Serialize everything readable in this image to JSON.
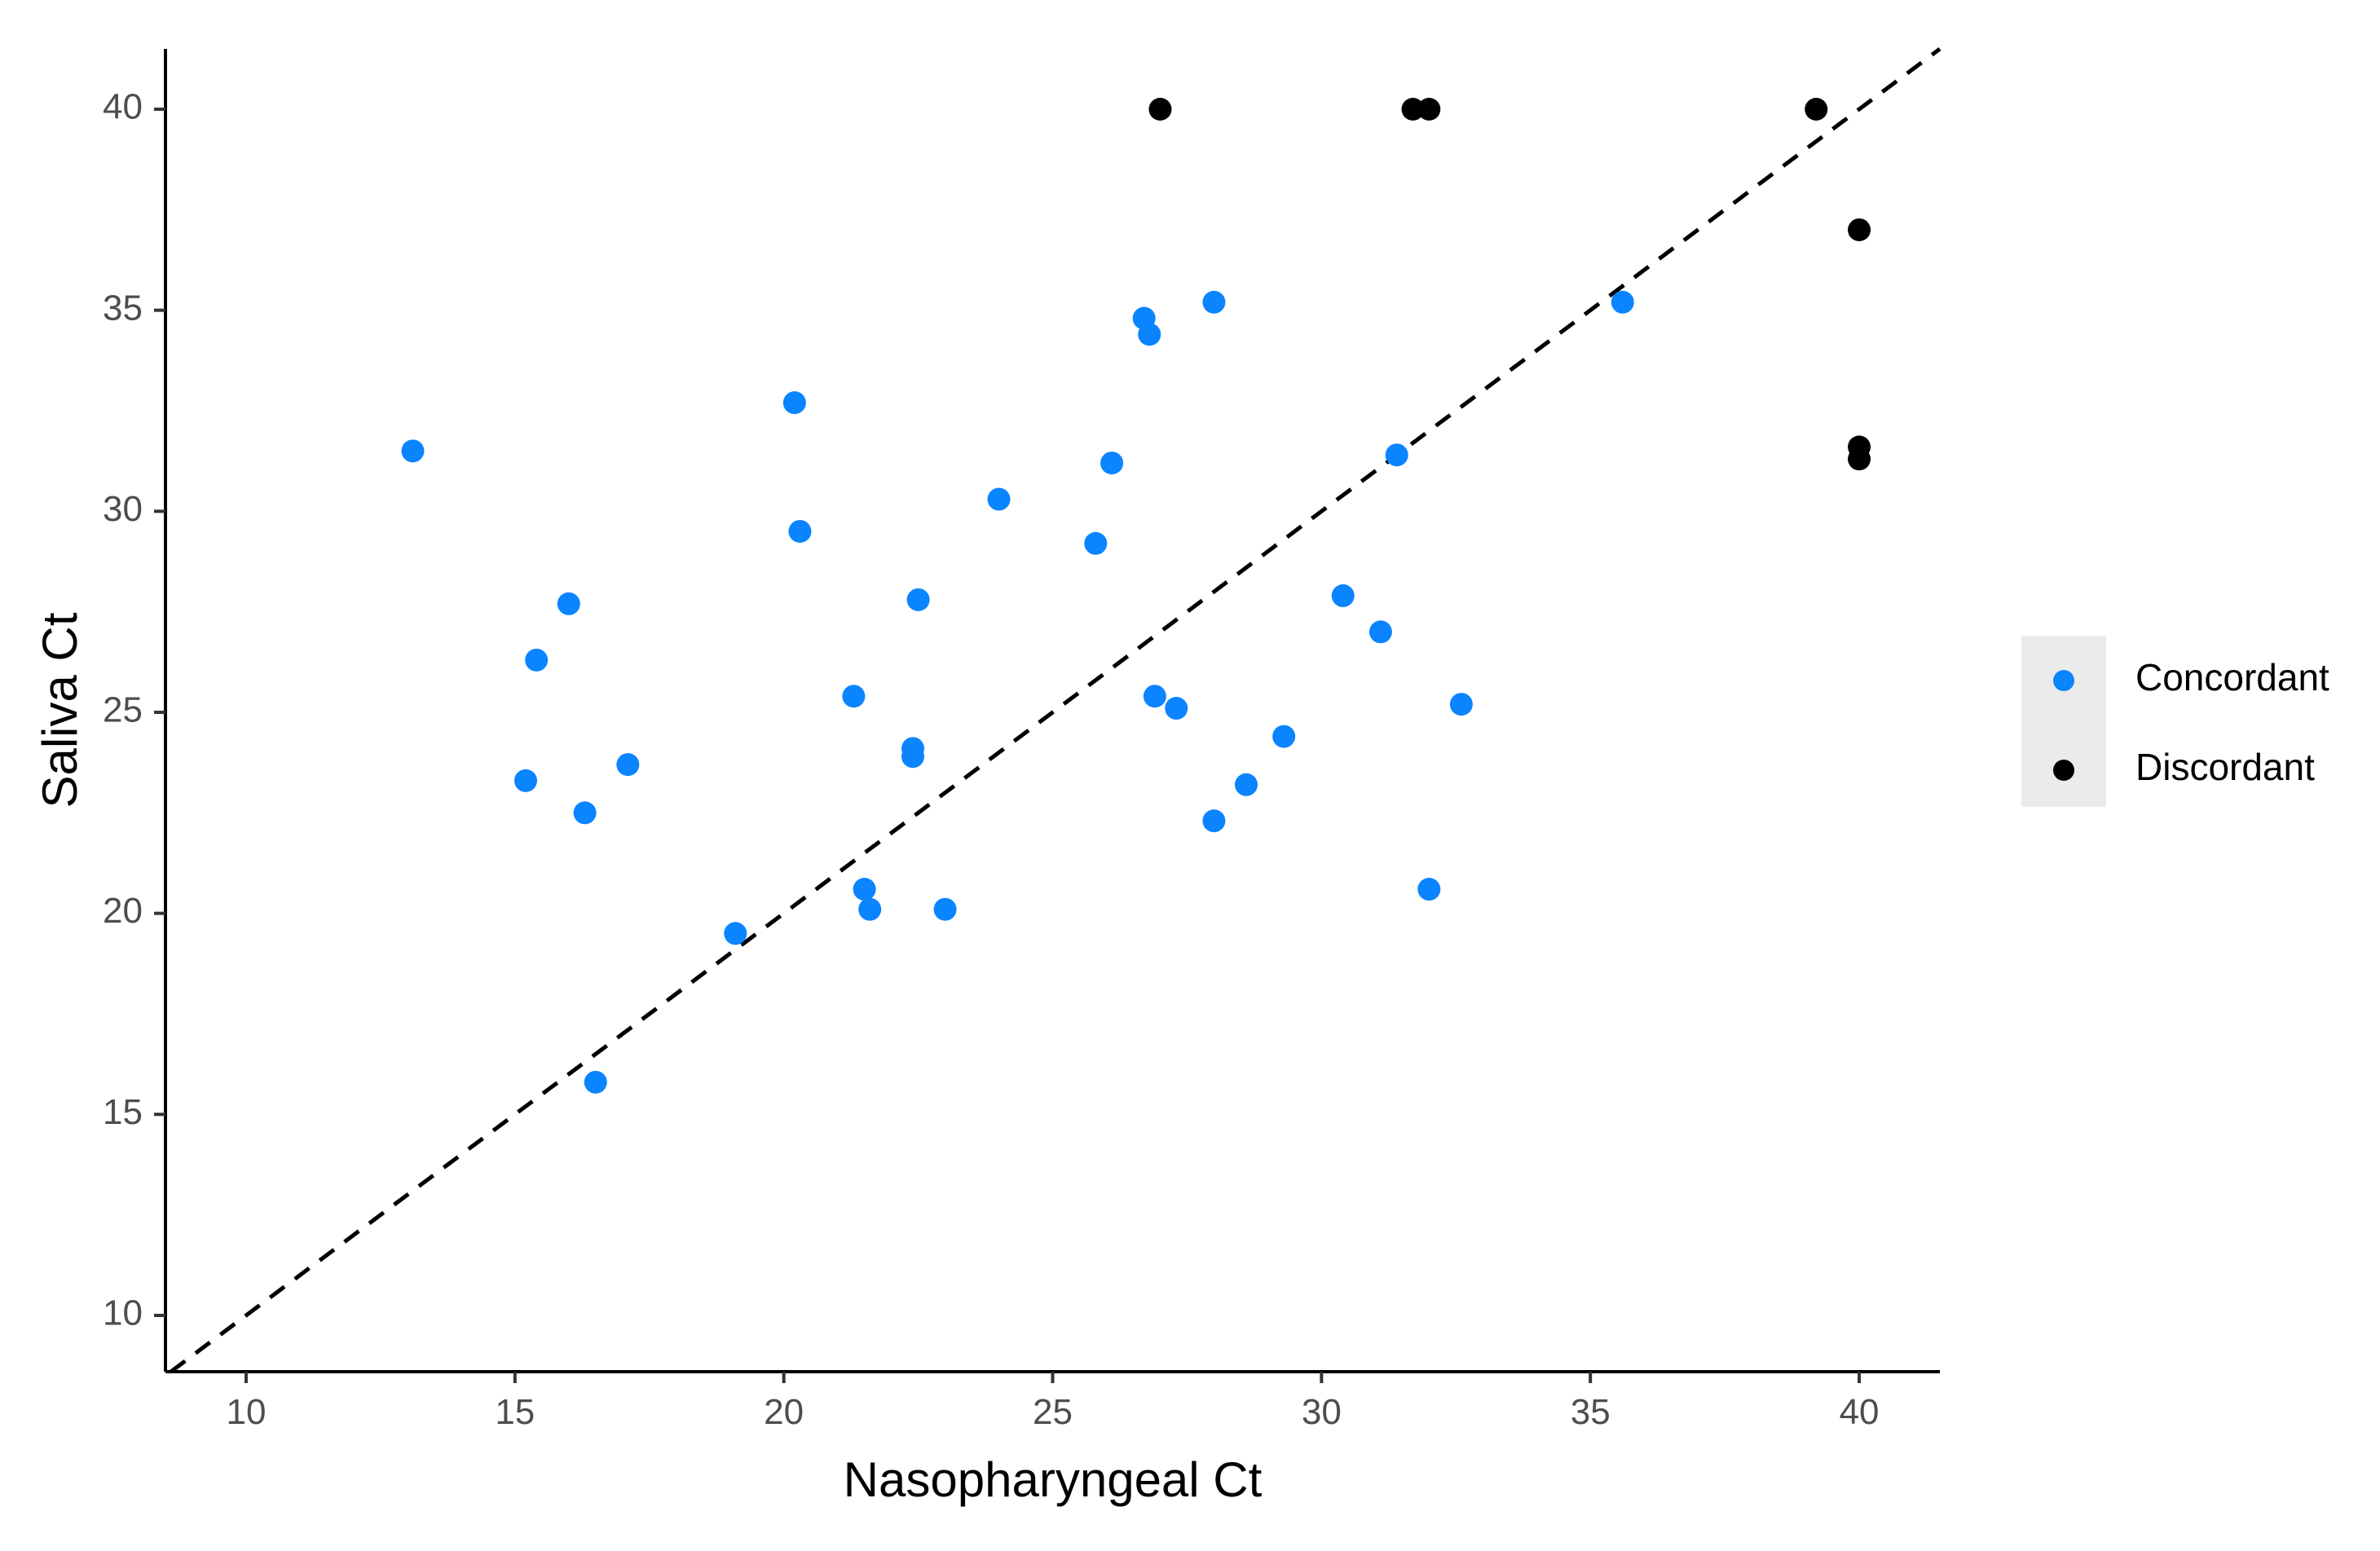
{
  "chart_data": {
    "type": "scatter",
    "xlabel": "Nasopharyngeal Ct",
    "ylabel": "Saliva Ct",
    "xlim": [
      8.5,
      41.5
    ],
    "ylim": [
      8.6,
      41.5
    ],
    "xticks": [
      10,
      15,
      20,
      25,
      30,
      35,
      40
    ],
    "yticks": [
      10,
      15,
      20,
      25,
      30,
      35,
      40
    ],
    "grid": false,
    "reference_line": {
      "type": "identity",
      "style": "dashed",
      "color": "#000000"
    },
    "legend": {
      "position": "right",
      "entries": [
        {
          "label": "Concordant",
          "color": "#0a84ff"
        },
        {
          "label": "Discordant",
          "color": "#000000"
        }
      ]
    },
    "series": [
      {
        "name": "Concordant",
        "color": "#0a84ff",
        "points": [
          [
            13.1,
            31.5
          ],
          [
            15.2,
            23.3
          ],
          [
            15.4,
            26.3
          ],
          [
            16.0,
            27.7
          ],
          [
            16.3,
            22.5
          ],
          [
            16.5,
            15.8
          ],
          [
            17.1,
            23.7
          ],
          [
            19.1,
            19.5
          ],
          [
            20.2,
            32.7
          ],
          [
            20.3,
            29.5
          ],
          [
            21.3,
            25.4
          ],
          [
            21.5,
            20.6
          ],
          [
            21.6,
            20.1
          ],
          [
            22.4,
            24.1
          ],
          [
            22.4,
            23.9
          ],
          [
            22.5,
            27.8
          ],
          [
            23.0,
            20.1
          ],
          [
            24.0,
            30.3
          ],
          [
            25.8,
            29.2
          ],
          [
            26.1,
            31.2
          ],
          [
            26.7,
            34.8
          ],
          [
            26.8,
            34.4
          ],
          [
            26.9,
            25.4
          ],
          [
            27.3,
            25.1
          ],
          [
            28.0,
            35.2
          ],
          [
            28.0,
            22.3
          ],
          [
            28.6,
            23.2
          ],
          [
            29.3,
            24.4
          ],
          [
            30.4,
            27.9
          ],
          [
            31.1,
            27.0
          ],
          [
            31.4,
            31.4
          ],
          [
            32.0,
            20.6
          ],
          [
            32.6,
            25.2
          ],
          [
            35.6,
            35.2
          ]
        ]
      },
      {
        "name": "Discordant",
        "color": "#000000",
        "points": [
          [
            27.0,
            40.0
          ],
          [
            31.7,
            40.0
          ],
          [
            32.0,
            40.0
          ],
          [
            39.2,
            40.0
          ],
          [
            40.0,
            37.0
          ],
          [
            40.0,
            31.6
          ],
          [
            40.0,
            31.3
          ]
        ]
      }
    ]
  }
}
